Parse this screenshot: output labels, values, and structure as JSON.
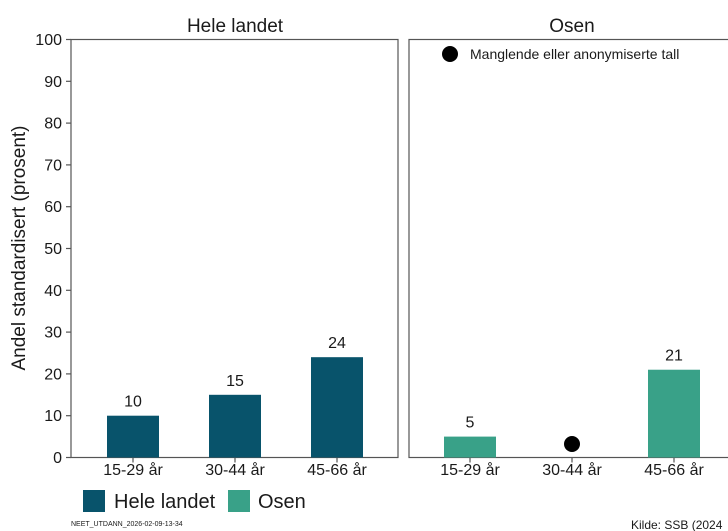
{
  "chart_data": {
    "type": "bar",
    "ylabel": "Andel standardisert (prosent)",
    "ylim": [
      0,
      100
    ],
    "yticks": [
      0,
      10,
      20,
      30,
      40,
      50,
      60,
      70,
      80,
      90,
      100
    ],
    "categories": [
      "15-29 år",
      "30-44 år",
      "45-66 år"
    ],
    "panels": [
      {
        "title": "Hele landet",
        "color": "#08536b",
        "values": [
          10,
          15,
          24
        ],
        "labels": [
          "10",
          "15",
          "24"
        ]
      },
      {
        "title": "Osen",
        "color": "#39a188",
        "values": [
          5,
          null,
          21
        ],
        "labels": [
          "5",
          "",
          "21"
        ]
      }
    ],
    "missing_note": "Manglende eller anonymiserte tall",
    "legend": [
      {
        "name": "Hele landet",
        "color": "#08536b"
      },
      {
        "name": "Osen",
        "color": "#39a188"
      }
    ],
    "legend_position": "bottom-left",
    "grid": false
  },
  "footer": {
    "code": "NEET_UTDANN_2026-02-09-13-34",
    "source": "Kilde: SSB (2024"
  }
}
